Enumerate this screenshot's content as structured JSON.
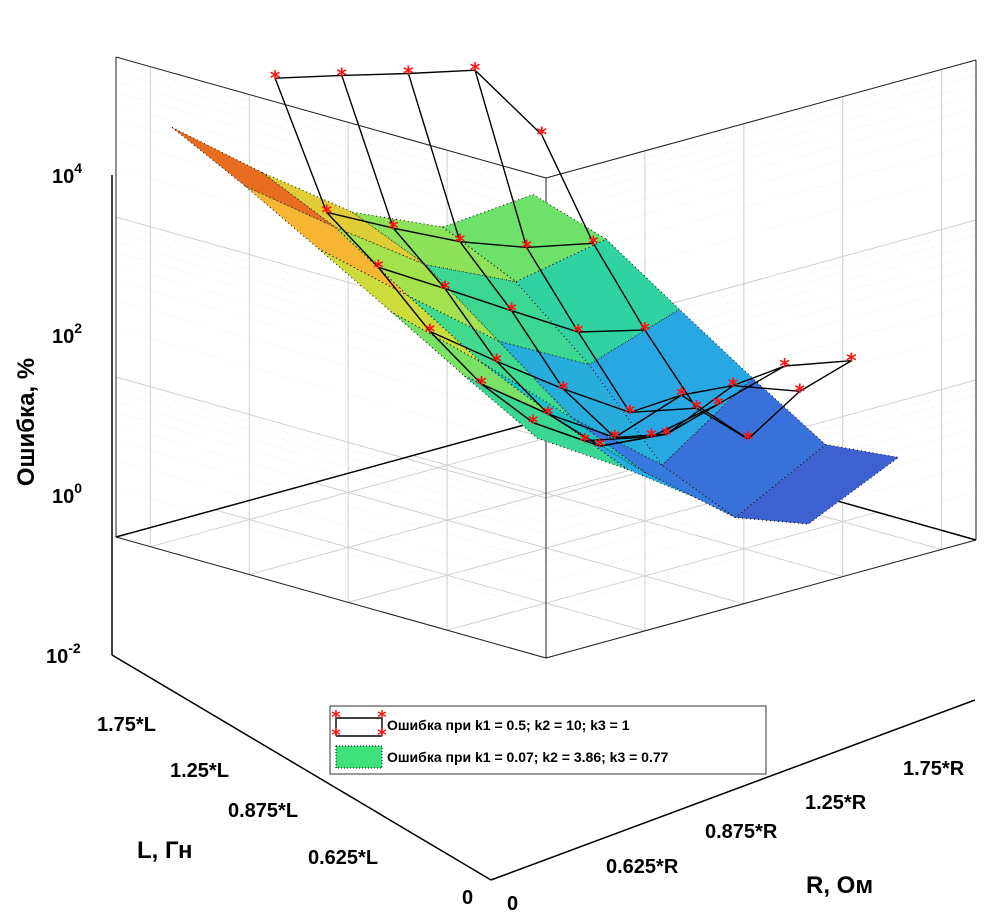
{
  "chart_data": {
    "type": "surface",
    "z_scale": "log",
    "zlim": [
      0.01,
      10000
    ],
    "grid": true,
    "z_ticks": [
      {
        "base": "10",
        "exp": "4"
      },
      {
        "base": "10",
        "exp": "2"
      },
      {
        "base": "10",
        "exp": "0"
      },
      {
        "base": "10",
        "exp": "-2"
      }
    ],
    "x_axis": {
      "label": "R, Ом",
      "ticks": [
        "0",
        "0.625*R",
        "0.875*R",
        "1.25*R",
        "1.75*R"
      ]
    },
    "y_axis": {
      "label": "L, Гн",
      "ticks": [
        "0",
        "0.625*L",
        "0.875*L",
        "1.25*L",
        "1.75*L"
      ]
    },
    "z_axis": {
      "label": "Ошибка, %"
    },
    "legend": {
      "position": "bottom-center",
      "entries": [
        {
          "label": "Ошибка при k1 = 0.5; k2 = 10; k3 = 1",
          "style": "black line with red asterisks"
        },
        {
          "label": "Ошибка при k1 = 0.07; k2 = 3.86; k3 = 0.77",
          "style": "colored surface"
        }
      ]
    },
    "colormap": [
      "#3a2e8c",
      "#3e5fd1",
      "#2f9bf0",
      "#19c6c0",
      "#4fe07a",
      "#c6e33b",
      "#f6b733",
      "#e45a1a",
      "#7a0403"
    ],
    "series": [
      {
        "name": "Ошибка при k1 = 0.5; k2 = 10; k3 = 1",
        "grid_values": [
          [
            2500,
            1600,
            1000,
            650,
            60
          ],
          [
            80,
            30,
            12,
            6,
            4
          ],
          [
            25,
            8,
            2.5,
            0.8,
            0.5
          ],
          [
            6,
            1.5,
            0.4,
            0.12,
            0.08
          ],
          [
            2,
            0.5,
            0.15,
            0.3,
            0.05
          ],
          [
            1,
            0.3,
            0.25,
            0.6,
            0.3
          ],
          [
            0.9,
            0.6,
            0.9,
            1.6,
            1.1
          ]
        ]
      },
      {
        "name": "Ошибка при k1 = 0.07; k2 = 3.86; k3 = 0.77",
        "grid_values": [
          [
            1200,
            160,
            25,
            8,
            10
          ],
          [
            400,
            60,
            10,
            3,
            5
          ],
          [
            120,
            15,
            2,
            0.5,
            1.2
          ],
          [
            35,
            4,
            0.4,
            0.05,
            0.3
          ],
          [
            10,
            1.5,
            0.15,
            0.02,
            0.08
          ],
          [
            3,
            0.6,
            0.1,
            0.03,
            0.1
          ]
        ]
      }
    ]
  }
}
